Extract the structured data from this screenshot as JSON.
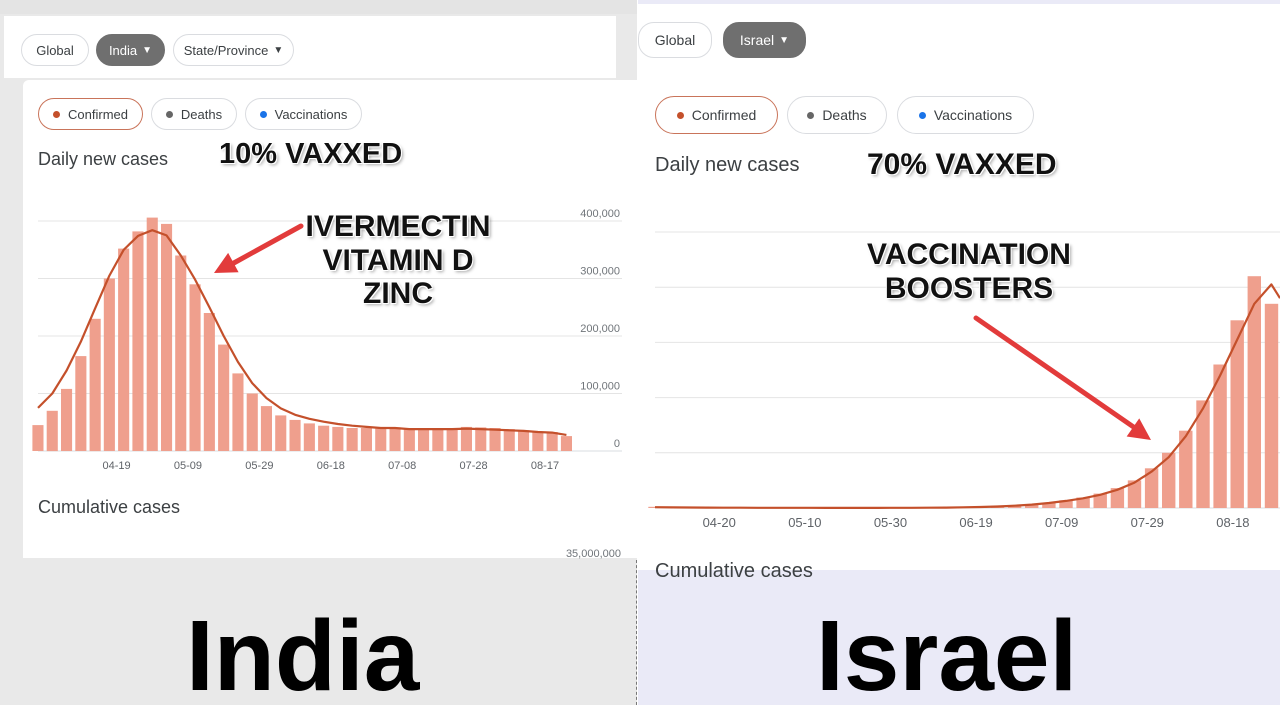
{
  "colors": {
    "bar": "#ef9f8d",
    "line": "#c4502b",
    "confirmed_dot": "#c4502b",
    "deaths_dot": "#666666",
    "vaccinations_dot": "#1a73e8"
  },
  "india": {
    "filters": {
      "global": "Global",
      "country": "India",
      "region": "State/Province"
    },
    "tabs": {
      "confirmed": "Confirmed",
      "deaths": "Deaths",
      "vaccinations": "Vaccinations"
    },
    "section_title": "Daily new cases",
    "vaxxed_note": "10% VAXXED",
    "annotation": [
      "IVERMECTIN",
      "VITAMIN D",
      "ZINC"
    ],
    "cumulative_title": "Cumulative cases",
    "cumulative_tick": "35,000,000",
    "country_label": "India"
  },
  "israel": {
    "filters": {
      "global": "Global",
      "country": "Israel"
    },
    "tabs": {
      "confirmed": "Confirmed",
      "deaths": "Deaths",
      "vaccinations": "Vaccinations"
    },
    "section_title": "Daily new cases",
    "vaxxed_note": "70% VAXXED",
    "annotation": [
      "VACCINATION",
      "BOOSTERS"
    ],
    "cumulative_title": "Cumulative cases",
    "country_label": "Israel"
  },
  "chart_data": [
    {
      "type": "bar",
      "title": "Daily new cases",
      "ylim": [
        0,
        400000
      ],
      "yticks": [
        0,
        100000,
        200000,
        300000,
        400000
      ],
      "ytick_labels": [
        "0",
        "100,000",
        "200,000",
        "300,000",
        "400,000"
      ],
      "x_tick_labels": [
        "04-19",
        "05-09",
        "05-29",
        "06-18",
        "07-08",
        "07-28",
        "08-17"
      ],
      "x_range_days": [
        -22,
        127
      ],
      "x_tick_days": [
        0,
        20,
        40,
        60,
        80,
        100,
        120
      ],
      "grid": true,
      "series": [
        {
          "kind": "bars",
          "x_days": [
            -22,
            -18,
            -14,
            -10,
            -6,
            -2,
            2,
            6,
            10,
            14,
            18,
            22,
            26,
            30,
            34,
            38,
            42,
            46,
            50,
            54,
            58,
            62,
            66,
            70,
            74,
            78,
            82,
            86,
            90,
            94,
            98,
            102,
            106,
            110,
            114,
            118,
            122,
            126
          ],
          "values": [
            45000,
            70000,
            108000,
            165000,
            230000,
            300000,
            352000,
            382000,
            406000,
            395000,
            340000,
            290000,
            240000,
            185000,
            135000,
            100000,
            78000,
            62000,
            54000,
            48000,
            44000,
            42000,
            40000,
            40000,
            39000,
            41000,
            38000,
            39000,
            40000,
            39000,
            42000,
            41000,
            40000,
            38000,
            36000,
            34000,
            33000,
            26000
          ]
        },
        {
          "kind": "line",
          "x_days": [
            -22,
            -18,
            -14,
            -10,
            -6,
            -2,
            2,
            6,
            10,
            14,
            18,
            22,
            26,
            30,
            34,
            38,
            42,
            46,
            50,
            54,
            58,
            62,
            66,
            70,
            74,
            78,
            82,
            86,
            90,
            94,
            98,
            102,
            106,
            110,
            114,
            118,
            122,
            126
          ],
          "values": [
            75000,
            100000,
            140000,
            190000,
            248000,
            305000,
            350000,
            374000,
            384000,
            375000,
            340000,
            298000,
            250000,
            200000,
            155000,
            118000,
            92000,
            74000,
            63000,
            56000,
            51000,
            47000,
            44000,
            42000,
            40000,
            40000,
            38000,
            38000,
            38000,
            38000,
            39000,
            38000,
            37000,
            36000,
            35000,
            33000,
            32000,
            28000
          ]
        }
      ]
    },
    {
      "type": "bar",
      "title": "Daily new cases",
      "x_tick_labels": [
        "04-20",
        "05-10",
        "05-30",
        "06-19",
        "07-09",
        "07-29",
        "08-18"
      ],
      "x_range_days": [
        -15,
        131
      ],
      "x_tick_days": [
        0,
        20,
        40,
        60,
        80,
        100,
        120
      ],
      "grid": true,
      "series": [
        {
          "kind": "bars",
          "x_days": [
            -15,
            -11,
            -7,
            -3,
            1,
            5,
            9,
            13,
            17,
            21,
            25,
            29,
            33,
            37,
            41,
            45,
            49,
            53,
            57,
            61,
            65,
            69,
            73,
            77,
            81,
            85,
            89,
            93,
            97,
            101,
            105,
            109,
            113,
            117,
            121,
            125,
            129
          ],
          "values": [
            22,
            10,
            8,
            6,
            5,
            4,
            3,
            3,
            3,
            2,
            2,
            2,
            2,
            2,
            3,
            4,
            6,
            9,
            14,
            22,
            32,
            48,
            70,
            100,
            140,
            190,
            260,
            360,
            500,
            720,
            1000,
            1400,
            1950,
            2600,
            3400,
            4200,
            3700
          ]
        },
        {
          "kind": "line",
          "x_days": [
            -15,
            -11,
            -7,
            -3,
            1,
            5,
            9,
            13,
            17,
            21,
            25,
            29,
            33,
            37,
            41,
            45,
            49,
            53,
            57,
            61,
            65,
            69,
            73,
            77,
            81,
            85,
            89,
            93,
            97,
            101,
            105,
            109,
            113,
            117,
            121,
            125,
            129,
            131
          ],
          "values": [
            14,
            11,
            9,
            7,
            6,
            5,
            4,
            3,
            3,
            3,
            2,
            2,
            2,
            2,
            3,
            4,
            5,
            8,
            12,
            19,
            28,
            42,
            62,
            90,
            128,
            175,
            240,
            330,
            460,
            660,
            920,
            1300,
            1800,
            2400,
            3050,
            3700,
            4050,
            3800
          ]
        }
      ]
    }
  ]
}
